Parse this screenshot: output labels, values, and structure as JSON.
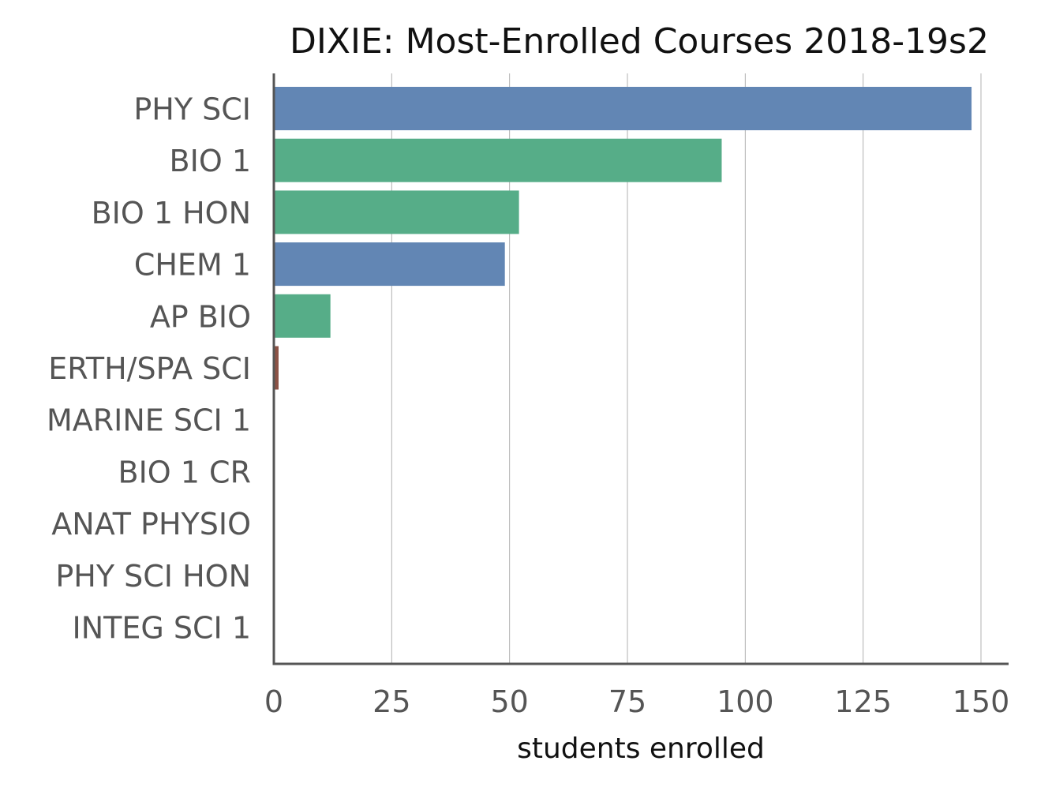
{
  "chart_data": {
    "type": "bar",
    "orientation": "horizontal",
    "title": "DIXIE: Most-Enrolled Courses 2018-19s2",
    "xlabel": "students enrolled",
    "ylabel": "",
    "xlim": [
      0,
      155
    ],
    "xticks": [
      0,
      25,
      50,
      75,
      100,
      125,
      150
    ],
    "grid": "vertical",
    "legend": "none",
    "categories": [
      "PHY SCI",
      "BIO 1",
      "BIO 1 HON",
      "CHEM 1",
      "AP BIO",
      "ERTH/SPA SCI",
      "MARINE SCI 1",
      "BIO 1 CR",
      "ANAT PHYSIO",
      "PHY SCI HON",
      "INTEG SCI 1"
    ],
    "values": [
      148,
      95,
      52,
      49,
      12,
      1,
      0,
      0,
      0,
      0,
      0
    ],
    "bar_colors": [
      "#6286b4",
      "#56ad88",
      "#56ad88",
      "#6286b4",
      "#56ad88",
      "#8c5245",
      "#6286b4",
      "#56ad88",
      "#56ad88",
      "#6286b4",
      "#6286b4"
    ]
  },
  "colors": {
    "axis": "#555555",
    "grid": "#b0b0b0",
    "background": "#ffffff"
  }
}
